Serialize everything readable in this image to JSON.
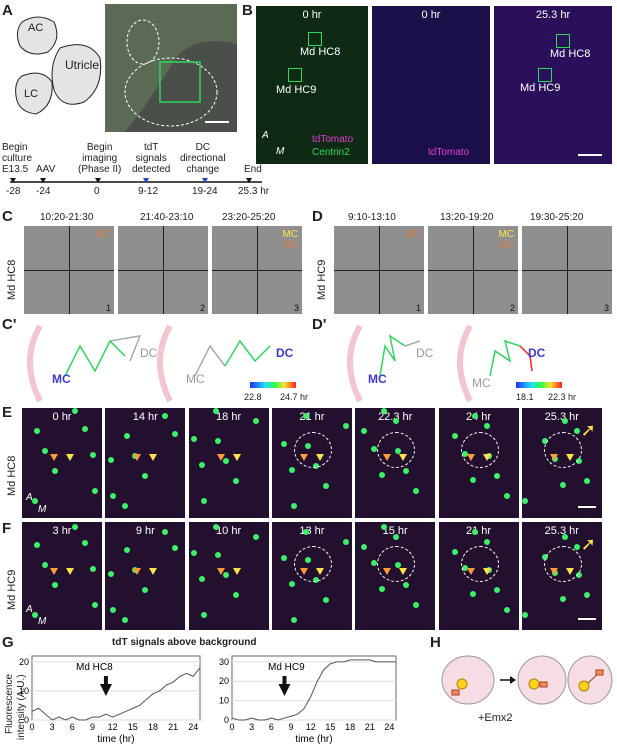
{
  "panels": {
    "A": {
      "label": "A",
      "regions": [
        "AC",
        "Utricle",
        "LC"
      ],
      "timeline": {
        "events": [
          {
            "text": "Begin\nculture\nE13.5",
            "tick": "-28"
          },
          {
            "text": "AAV",
            "tick": "-24"
          },
          {
            "text": "Begin\nimaging\n(Phase II)",
            "tick": "0"
          },
          {
            "text": "tdT\nsignals\ndetected",
            "tick": "9-12"
          },
          {
            "text": "DC\ndirectional\nchange",
            "tick": "19-24"
          },
          {
            "text": "End",
            "tick": "25.3 hr"
          }
        ]
      }
    },
    "B": {
      "label": "B",
      "img1": {
        "time": "0 hr",
        "boxes": [
          "Md HC8",
          "Md HC9"
        ],
        "legend1": "tdTomato",
        "legend2": "Centrin2",
        "axisA": "A",
        "axisM": "M"
      },
      "img2": {
        "time": "0 hr",
        "legend": "tdTomato"
      },
      "img3": {
        "time": "25.3 hr",
        "boxes": [
          "Md HC8",
          "Md HC9"
        ]
      }
    },
    "C": {
      "label": "C",
      "side": "Md HC8",
      "times": [
        "10:20-21:30",
        "21:40-23:10",
        "23:20-25:20"
      ],
      "nums": [
        "1",
        "2",
        "3"
      ],
      "dc": "DC",
      "mc": "MC"
    },
    "D": {
      "label": "D",
      "side": "Md HC9",
      "times": [
        "9:10-13:10",
        "13:20-19:20",
        "19:30-25:20"
      ],
      "nums": [
        "1",
        "2",
        "3"
      ],
      "dc": "DC",
      "mc": "MC"
    },
    "Cp": {
      "label": "C'",
      "dc": "DC",
      "mc": "MC",
      "scale_min": "22.8",
      "scale_max": "24.7 hr"
    },
    "Dp": {
      "label": "D'",
      "dc": "DC",
      "mc": "MC",
      "scale_min": "18.1",
      "scale_max": "22.3 hr"
    },
    "E": {
      "label": "E",
      "side": "Md HC8",
      "times": [
        "0 hr",
        "14 hr",
        "18 hr",
        "21 hr",
        "22.3 hr",
        "24 hr",
        "25.3 hr"
      ],
      "axisA": "A",
      "axisM": "M"
    },
    "F": {
      "label": "F",
      "side": "Md HC9",
      "times": [
        "3 hr",
        "9 hr",
        "10 hr",
        "13 hr",
        "15 hr",
        "21 hr",
        "25.3 hr"
      ],
      "axisA": "A",
      "axisM": "M"
    },
    "G": {
      "label": "G",
      "title": "tdT signals above background",
      "ylabel1": "Fluorescence",
      "ylabel2": "intensity (A.U.)",
      "xlabel": "time (hr)",
      "left": {
        "name": "Md HC8",
        "yticks": [
          "0",
          "10",
          "20"
        ],
        "xticks": [
          "0",
          "3",
          "6",
          "9",
          "12",
          "15",
          "18",
          "21",
          "24"
        ]
      },
      "right": {
        "name": "Md HC9",
        "yticks": [
          "0",
          "10",
          "20",
          "30"
        ],
        "xticks": [
          "0",
          "3",
          "6",
          "9",
          "12",
          "15",
          "18",
          "21",
          "24"
        ]
      }
    },
    "H": {
      "label": "H",
      "note": "+Emx2"
    }
  },
  "chart_data": [
    {
      "type": "line",
      "name": "Md HC8",
      "x": [
        0,
        1,
        2,
        3,
        4,
        5,
        6,
        7,
        8,
        9,
        10,
        11,
        12,
        13,
        14,
        15,
        16,
        17,
        18,
        19,
        20,
        21,
        22,
        23,
        24,
        25
      ],
      "y": [
        3,
        4,
        2,
        0,
        1,
        0,
        1,
        0,
        0,
        1,
        1,
        2,
        1,
        2,
        3,
        4,
        5,
        7,
        9,
        10,
        12,
        13,
        15,
        16,
        15,
        18
      ],
      "ylim": [
        0,
        22
      ],
      "xlim": [
        0,
        25
      ]
    },
    {
      "type": "line",
      "name": "Md HC9",
      "x": [
        0,
        1,
        2,
        3,
        4,
        5,
        6,
        7,
        8,
        9,
        10,
        11,
        12,
        13,
        14,
        15,
        16,
        17,
        18,
        19,
        20,
        21,
        22,
        23,
        24,
        25
      ],
      "y": [
        1,
        0,
        0,
        1,
        0,
        0,
        1,
        0,
        1,
        2,
        3,
        6,
        12,
        20,
        26,
        29,
        30,
        30,
        31,
        31,
        31,
        31,
        30,
        30,
        30,
        30
      ],
      "ylim": [
        0,
        33
      ],
      "xlim": [
        0,
        25
      ]
    }
  ]
}
